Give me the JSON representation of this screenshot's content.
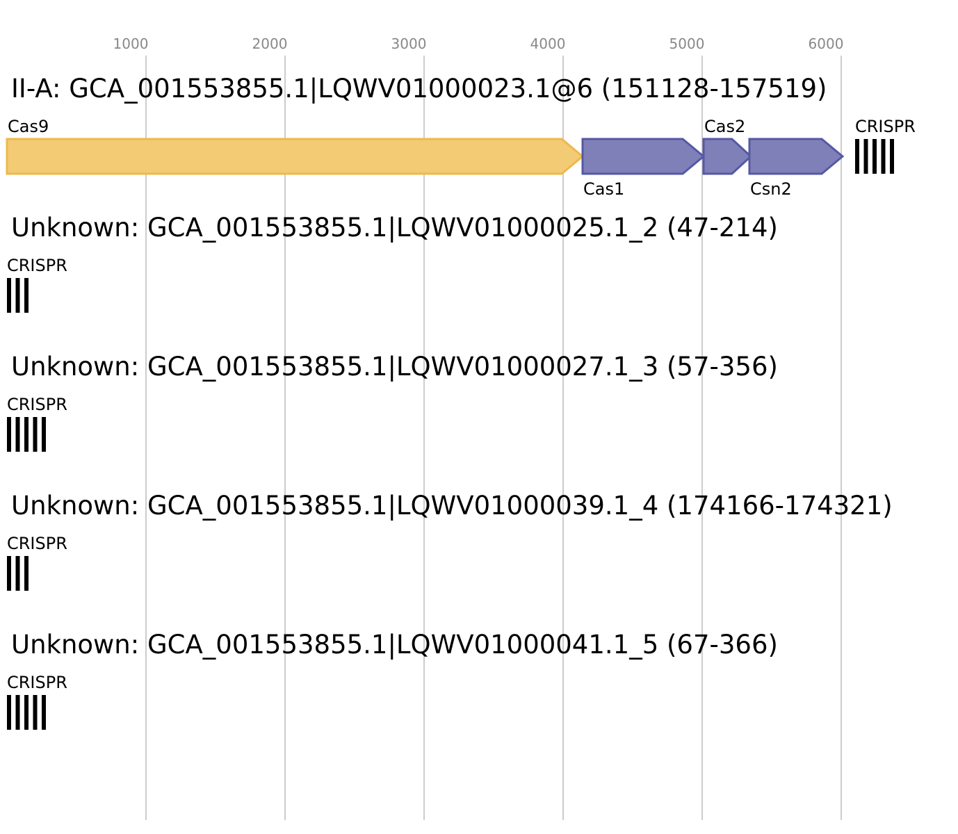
{
  "axis": {
    "ticks": [
      {
        "value": 1000,
        "label": "1000"
      },
      {
        "value": 2000,
        "label": "2000"
      },
      {
        "value": 3000,
        "label": "3000"
      },
      {
        "value": 4000,
        "label": "4000"
      },
      {
        "value": 5000,
        "label": "5000"
      },
      {
        "value": 6000,
        "label": "6000"
      }
    ]
  },
  "colors": {
    "cas9": "#f2cb74",
    "cas9_stroke": "#edb94c",
    "adaptation": "#7f80b8",
    "adaptation_stroke": "#5558a3",
    "crispr": "#000000",
    "grid": "#bbbbbb",
    "tick_text": "#888888"
  },
  "loci": [
    {
      "title": "II-A: GCA_001553855.1|LQWV01000023.1@6 (151128-157519)",
      "genes": [
        {
          "name": "Cas9",
          "start": 0,
          "end": 4140,
          "label_pos": "top",
          "color": "cas9"
        },
        {
          "name": "Cas1",
          "start": 4140,
          "end": 5010,
          "label_pos": "bottom",
          "color": "adaptation"
        },
        {
          "name": "Cas2",
          "start": 5010,
          "end": 5350,
          "label_pos": "top",
          "color": "adaptation"
        },
        {
          "name": "Csn2",
          "start": 5340,
          "end": 6010,
          "label_pos": "bottom",
          "color": "adaptation"
        }
      ],
      "crisprs": [
        {
          "name": "CRISPR",
          "start": 6100,
          "bars": 5
        }
      ]
    },
    {
      "title": "Unknown: GCA_001553855.1|LQWV01000025.1_2 (47-214)",
      "genes": [],
      "crisprs": [
        {
          "name": "CRISPR",
          "start": 0,
          "bars": 3
        }
      ]
    },
    {
      "title": "Unknown: GCA_001553855.1|LQWV01000027.1_3 (57-356)",
      "genes": [],
      "crisprs": [
        {
          "name": "CRISPR",
          "start": 0,
          "bars": 5
        }
      ]
    },
    {
      "title": "Unknown: GCA_001553855.1|LQWV01000039.1_4 (174166-174321)",
      "genes": [],
      "crisprs": [
        {
          "name": "CRISPR",
          "start": 0,
          "bars": 3
        }
      ]
    },
    {
      "title": "Unknown: GCA_001553855.1|LQWV01000041.1_5 (67-366)",
      "genes": [],
      "crisprs": [
        {
          "name": "CRISPR",
          "start": 0,
          "bars": 5
        }
      ]
    }
  ]
}
